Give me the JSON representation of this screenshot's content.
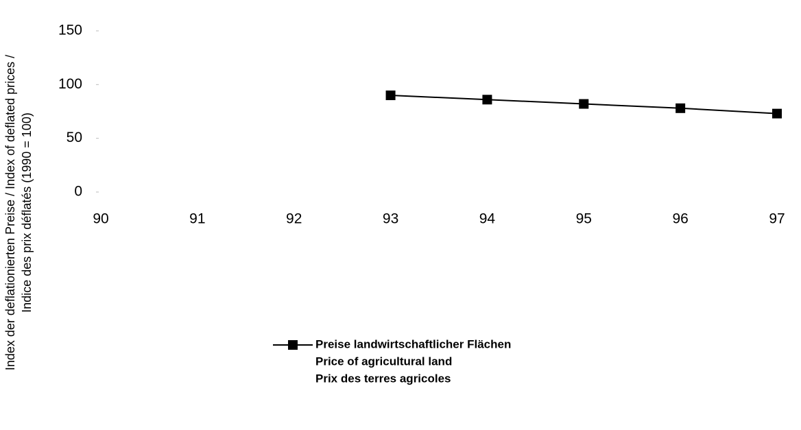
{
  "chart_data": {
    "type": "line",
    "y_label": [
      "Index der deflationierten Preise / Index of deflated prices /",
      "Indice des prix déflatés (1990 = 100)"
    ],
    "categories": [
      "90",
      "91",
      "92",
      "93",
      "94",
      "95",
      "96",
      "97"
    ],
    "series": [
      {
        "name": [
          "Preise landwirtschaftlicher Flächen",
          "Price of agricultural land",
          "Prix des terres agricoles"
        ],
        "color": "#000000",
        "values": [
          null,
          null,
          null,
          90,
          86,
          82,
          78,
          73
        ]
      }
    ],
    "ylim": [
      0,
      150
    ],
    "yticks": [
      0,
      50,
      100,
      150
    ],
    "grid": false,
    "legend": "bottom"
  }
}
